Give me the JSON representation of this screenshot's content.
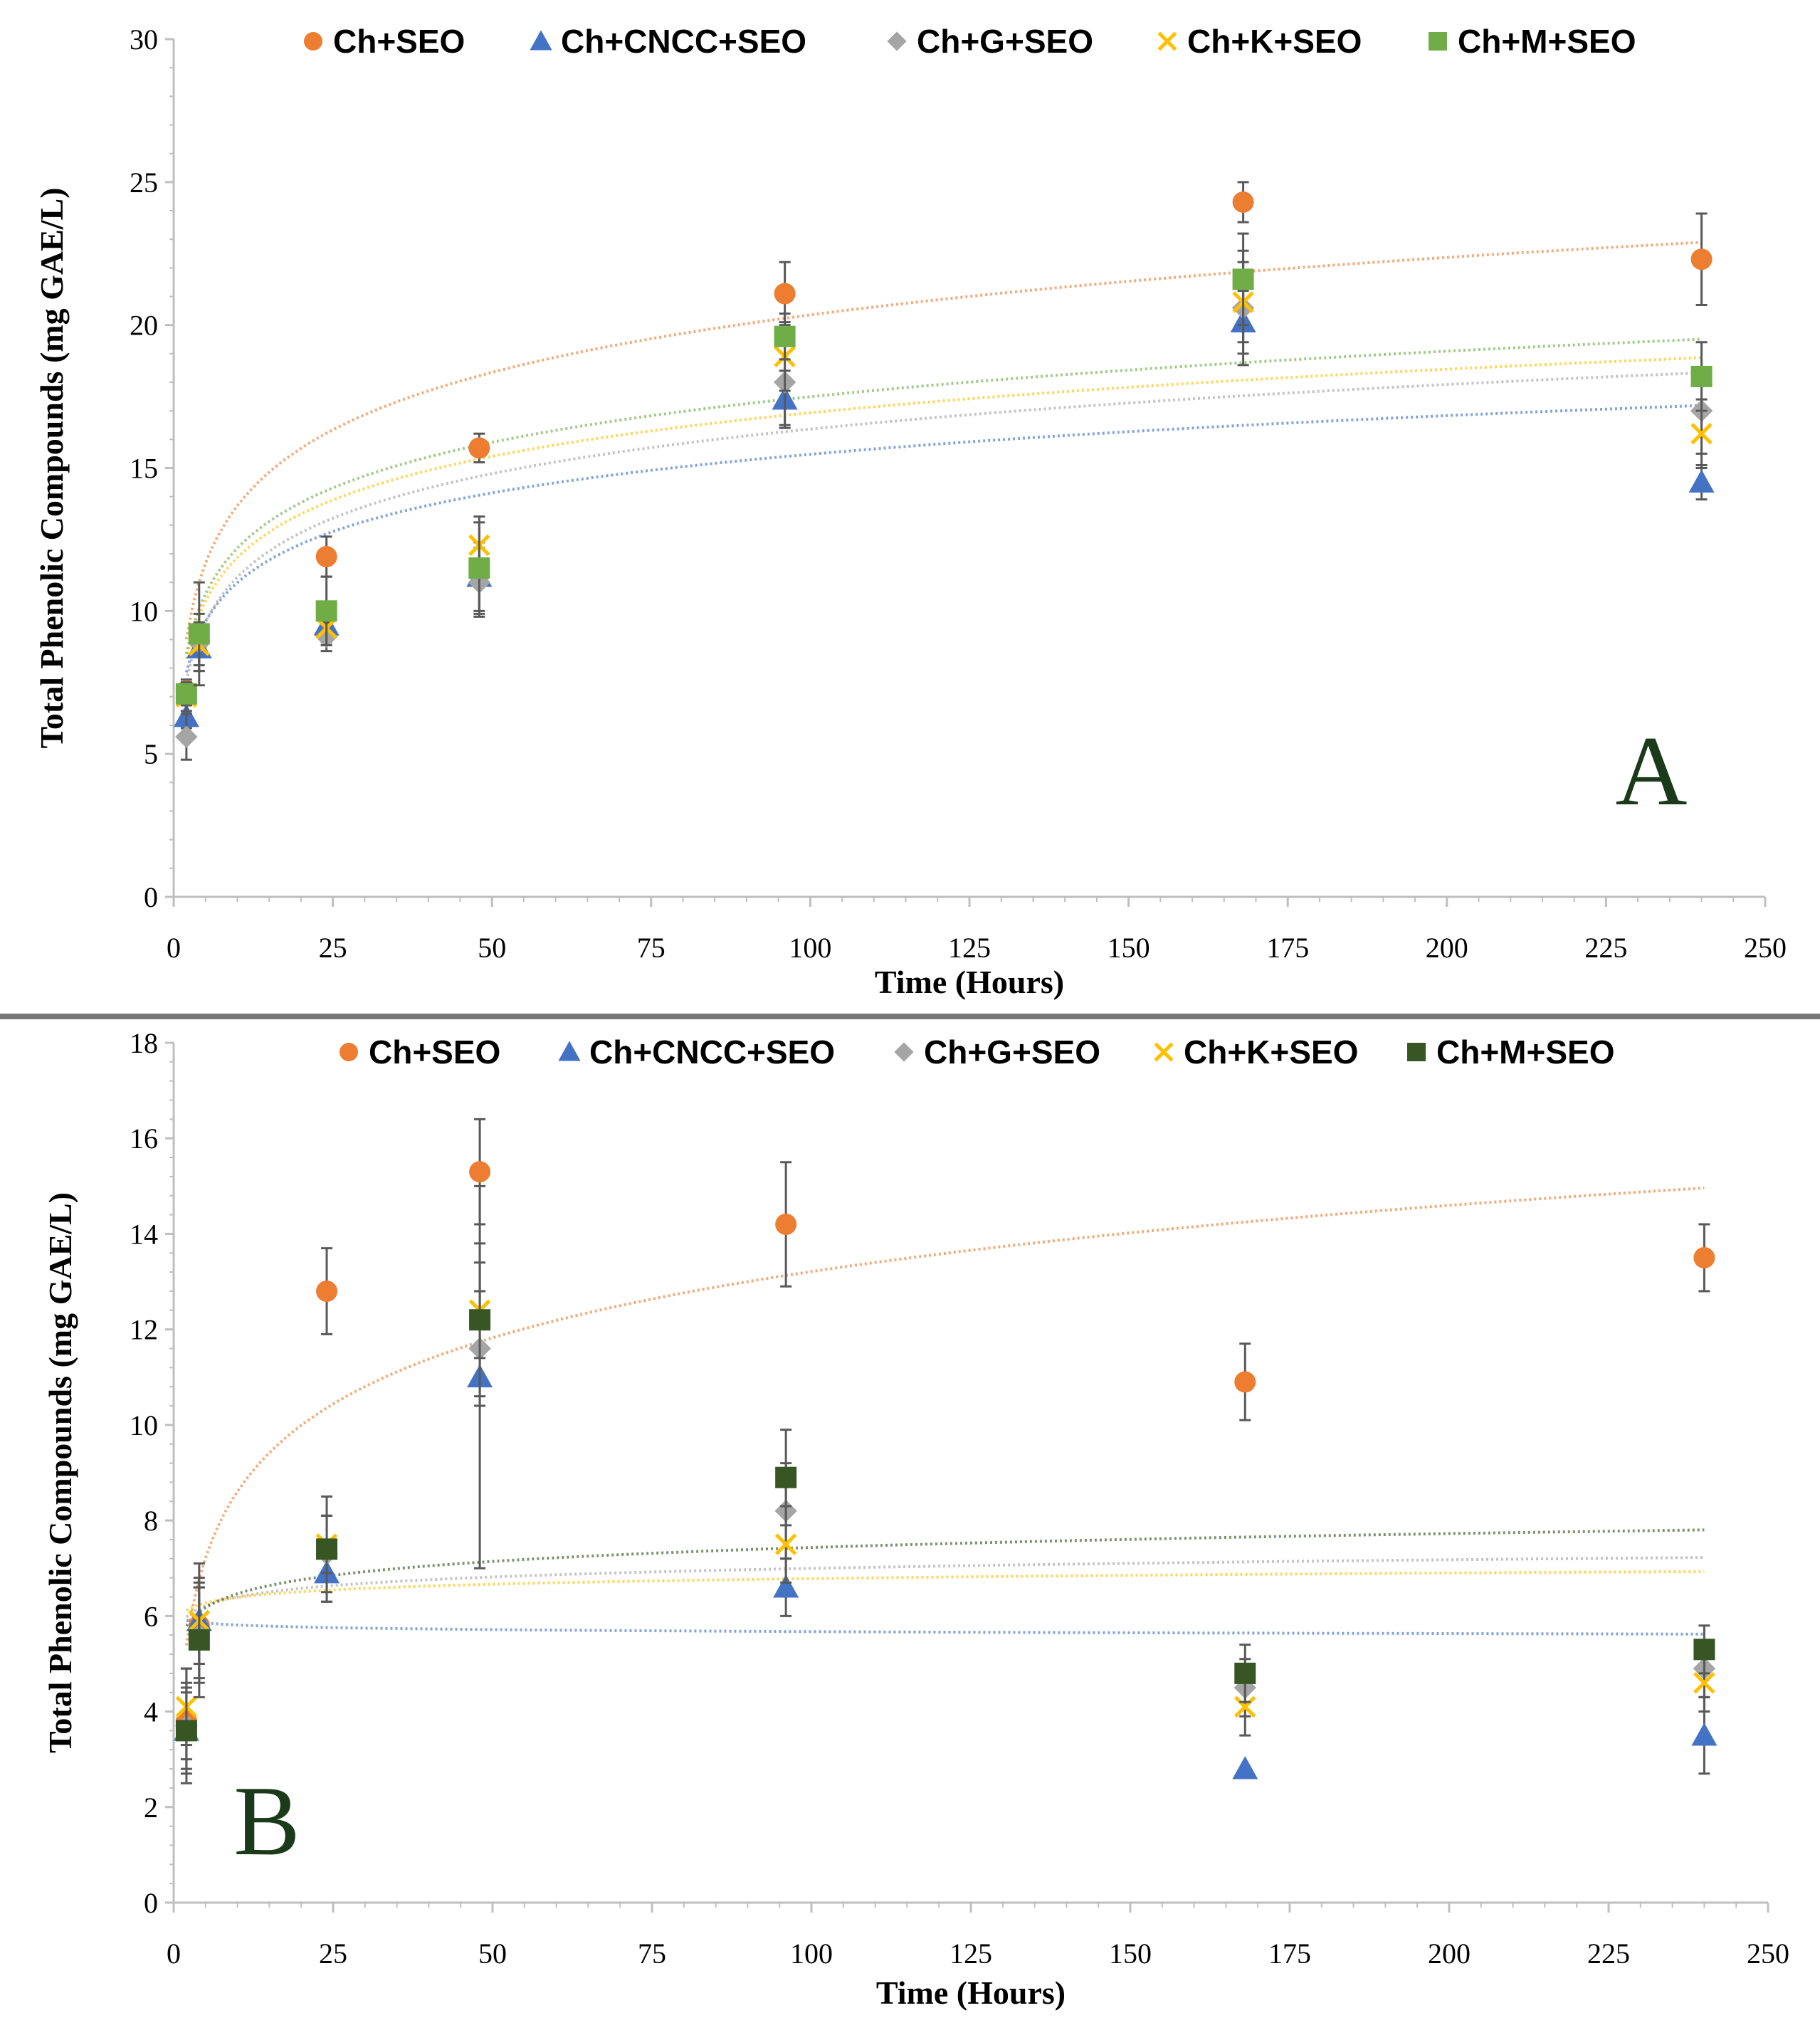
{
  "chart_data": [
    {
      "type": "scatter",
      "panel_label": "A",
      "title": "",
      "xlabel": "Time (Hours)",
      "ylabel": "Total Phenolic Compounds  (mg GAE/L)",
      "xlim": [
        0,
        250
      ],
      "ylim": [
        0,
        30
      ],
      "xticks": [
        "0",
        "25",
        "50",
        "75",
        "100",
        "125",
        "150",
        "175",
        "200",
        "225",
        "250"
      ],
      "yticks": [
        "0",
        "5",
        "10",
        "15",
        "20",
        "25",
        "30"
      ],
      "grid": false,
      "legend_position": "top",
      "trendline": "logarithmic",
      "series": [
        {
          "name": "Ch+SEO",
          "marker": "circle",
          "color": "#ED7D31",
          "x": [
            2,
            4,
            24,
            48,
            96,
            168,
            240
          ],
          "values": [
            7.2,
            9.0,
            11.9,
            15.7,
            21.1,
            24.3,
            22.3
          ],
          "errors": [
            0.4,
            0.6,
            0.7,
            0.5,
            1.1,
            0.7,
            1.6
          ],
          "trend": {
            "a": 7.0,
            "b": 2.9
          }
        },
        {
          "name": "Ch+CNCC+SEO",
          "marker": "triangle",
          "color": "#4472C4",
          "x": [
            2,
            4,
            24,
            48,
            96,
            168,
            240
          ],
          "values": [
            6.3,
            8.7,
            9.5,
            11.2,
            17.4,
            20.1,
            14.5
          ],
          "errors": [
            0.4,
            0.8,
            0.6,
            1.2,
            1.0,
            1.1,
            0.6
          ],
          "trend": {
            "a": 6.5,
            "b": 1.95
          }
        },
        {
          "name": "Ch+G+SEO",
          "marker": "diamond",
          "color": "#A5A5A5",
          "x": [
            2,
            4,
            24,
            48,
            96,
            168,
            240
          ],
          "values": [
            5.6,
            8.9,
            9.1,
            11.0,
            18.0,
            20.6,
            17.0
          ],
          "errors": [
            0.8,
            1.0,
            0.5,
            1.2,
            1.5,
            2.0,
            1.5
          ],
          "trend": {
            "a": 6.0,
            "b": 2.25
          }
        },
        {
          "name": "Ch+K+SEO",
          "marker": "x",
          "color": "#FFC000",
          "x": [
            2,
            4,
            24,
            48,
            96,
            168,
            240
          ],
          "values": [
            7.0,
            8.8,
            9.4,
            12.3,
            18.9,
            20.8,
            16.2
          ],
          "errors": [
            0.5,
            0.7,
            0.6,
            1.0,
            1.2,
            1.4,
            1.2
          ],
          "trend": {
            "a": 6.8,
            "b": 2.2
          }
        },
        {
          "name": "Ch+M+SEO",
          "marker": "square",
          "color": "#70AD47",
          "x": [
            2,
            4,
            24,
            48,
            96,
            168,
            240
          ],
          "values": [
            7.1,
            9.2,
            10.0,
            11.5,
            19.6,
            21.6,
            18.2
          ],
          "errors": [
            0.4,
            1.8,
            1.2,
            1.6,
            0.8,
            1.6,
            1.2
          ],
          "trend": {
            "a": 6.9,
            "b": 2.3
          }
        }
      ]
    },
    {
      "type": "scatter",
      "panel_label": "B",
      "title": "",
      "xlabel": "Time (Hours)",
      "ylabel": "Total Phenolic Compounds  (mg GAE/L)",
      "xlim": [
        0,
        250
      ],
      "ylim": [
        0,
        18
      ],
      "xticks": [
        "0",
        "25",
        "50",
        "75",
        "100",
        "125",
        "150",
        "175",
        "200",
        "225",
        "250"
      ],
      "yticks": [
        "0",
        "2",
        "4",
        "6",
        "8",
        "10",
        "12",
        "14",
        "16",
        "18"
      ],
      "grid": false,
      "legend_position": "top",
      "trendline": "logarithmic",
      "series": [
        {
          "name": "Ch+SEO",
          "marker": "circle",
          "color": "#ED7D31",
          "x": [
            2,
            4,
            24,
            48,
            96,
            168,
            240
          ],
          "values": [
            3.8,
            5.8,
            12.8,
            15.3,
            14.2,
            10.9,
            13.5
          ],
          "errors": [
            0.8,
            0.8,
            0.9,
            1.1,
            1.3,
            0.8,
            0.7
          ],
          "trend": {
            "a": 4.0,
            "b": 2.0
          }
        },
        {
          "name": "Ch+CNCC+SEO",
          "marker": "triangle",
          "color": "#4472C4",
          "x": [
            2,
            4,
            24,
            48,
            96,
            168,
            240
          ],
          "values": [
            3.6,
            5.9,
            6.9,
            11.0,
            6.6,
            2.8,
            3.5
          ],
          "errors": [
            0.8,
            1.2,
            0.6,
            4.0,
            0.6,
            0.0,
            0.8
          ],
          "trend": {
            "a": 5.95,
            "b": -0.06
          }
        },
        {
          "name": "Ch+G+SEO",
          "marker": "diamond",
          "color": "#A5A5A5",
          "x": [
            2,
            4,
            24,
            48,
            96,
            168,
            240
          ],
          "values": [
            3.7,
            5.6,
            7.3,
            11.6,
            8.2,
            4.5,
            4.9
          ],
          "errors": [
            1.2,
            1.0,
            0.8,
            1.2,
            1.0,
            0.6,
            0.6
          ],
          "trend": {
            "a": 5.8,
            "b": 0.26
          }
        },
        {
          "name": "Ch+K+SEO",
          "marker": "x",
          "color": "#FFC000",
          "x": [
            2,
            4,
            24,
            48,
            96,
            168,
            240
          ],
          "values": [
            4.1,
            5.9,
            7.5,
            12.4,
            7.5,
            4.1,
            4.6
          ],
          "errors": [
            0.8,
            0.9,
            0.6,
            1.0,
            0.8,
            0.6,
            0.6
          ],
          "trend": {
            "a": 6.0,
            "b": 0.17
          }
        },
        {
          "name": "Ch+M+SEO",
          "marker": "square",
          "color": "#375623",
          "x": [
            2,
            4,
            24,
            48,
            96,
            168,
            240
          ],
          "values": [
            3.6,
            5.5,
            7.4,
            12.2,
            8.9,
            4.8,
            5.3
          ],
          "errors": [
            0.9,
            1.2,
            1.1,
            1.6,
            1.0,
            0.6,
            0.5
          ],
          "trend": {
            "a": 5.5,
            "b": 0.42
          }
        }
      ]
    }
  ]
}
